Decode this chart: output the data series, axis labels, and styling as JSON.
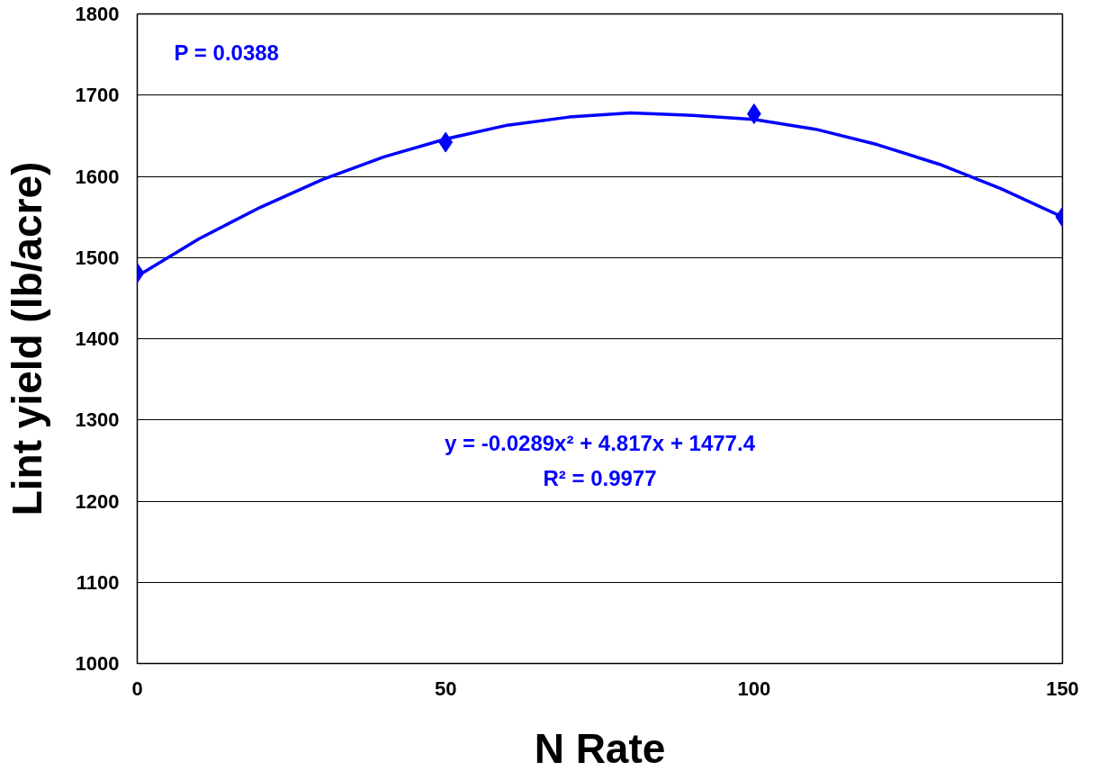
{
  "chart_data": {
    "type": "scatter",
    "xlabel": "N Rate",
    "ylabel": "Lint yield (lb/acre)",
    "xlim": [
      0,
      150
    ],
    "xticks": [
      0,
      50,
      100,
      150
    ],
    "ylim": [
      1000,
      1800
    ],
    "yticks": [
      1000,
      1100,
      1200,
      1300,
      1400,
      1500,
      1600,
      1700,
      1800
    ],
    "grid": "y",
    "annotations": [
      "P = 0.0388",
      "y = -0.0289x² + 4.817x + 1477.4",
      "R² = 0.9977"
    ],
    "series": [
      {
        "marker": "diamond",
        "color": "#0000ff",
        "x": [
          0,
          50,
          100,
          150
        ],
        "values": [
          1481,
          1642,
          1677,
          1550
        ]
      },
      {
        "type": "line",
        "marker": "none",
        "line_style": "solid",
        "color": "#0000ff",
        "x": [
          0,
          10,
          20,
          30,
          40,
          50,
          60,
          70,
          80,
          90,
          100,
          110,
          120,
          130,
          140,
          150
        ],
        "values": [
          1477,
          1523,
          1562,
          1596,
          1624,
          1646,
          1663,
          1673,
          1678,
          1675,
          1670,
          1658,
          1639,
          1615,
          1585,
          1550
        ]
      }
    ]
  }
}
